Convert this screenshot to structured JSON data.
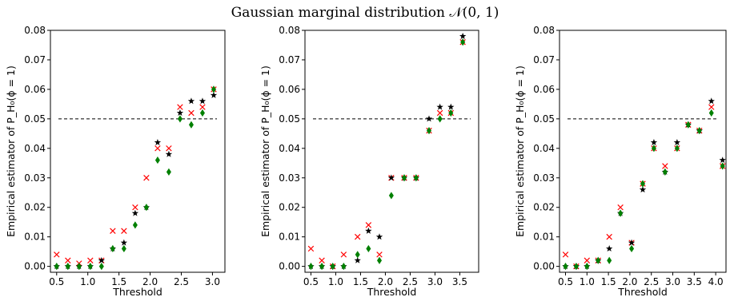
{
  "figure": {
    "title": "Gaussian marginal distribution 𝒩(0, 1)",
    "colors": {
      "cross": "#ff0000",
      "star": "#000000",
      "diamond": "#008000",
      "reference": "#000000"
    }
  },
  "chart_data": [
    {
      "type": "scatter",
      "xlabel": "Threshold",
      "ylabel": "Empirical estimator of P_H₀(ϕ = 1)",
      "xlim": [
        0.4,
        3.2
      ],
      "ylim": [
        -0.002,
        0.08
      ],
      "xticks": [
        "0.5",
        "1.0",
        "1.5",
        "2.0",
        "2.5",
        "3.0"
      ],
      "yticks": [
        "0.00",
        "0.01",
        "0.02",
        "0.03",
        "0.04",
        "0.05",
        "0.06",
        "0.07",
        "0.08"
      ],
      "reference_line": 0.05,
      "x": [
        0.5,
        0.68,
        0.86,
        1.04,
        1.22,
        1.4,
        1.58,
        1.76,
        1.94,
        2.12,
        2.3,
        2.48,
        2.66,
        2.84,
        3.02
      ],
      "series": [
        {
          "marker": "cross",
          "values": [
            0.004,
            0.002,
            0.001,
            0.002,
            0.002,
            0.012,
            0.012,
            0.02,
            0.03,
            0.04,
            0.04,
            0.054,
            0.052,
            0.054,
            0.06
          ]
        },
        {
          "marker": "star",
          "values": [
            0.0,
            0.0,
            0.0,
            0.0,
            0.002,
            0.006,
            0.008,
            0.018,
            0.02,
            0.042,
            0.038,
            0.052,
            0.056,
            0.056,
            0.058
          ]
        },
        {
          "marker": "diamond",
          "values": [
            0.0,
            0.0,
            0.0,
            0.0,
            0.0,
            0.006,
            0.006,
            0.014,
            0.02,
            0.036,
            0.032,
            0.05,
            0.048,
            0.052,
            0.06
          ]
        }
      ]
    },
    {
      "type": "scatter",
      "xlabel": "Threshold",
      "ylabel": "Empirical estimator of P_H₀(ϕ = 1)",
      "xlim": [
        0.38,
        3.88
      ],
      "ylim": [
        -0.002,
        0.08
      ],
      "xticks": [
        "0.5",
        "1.0",
        "1.5",
        "2.0",
        "2.5",
        "3.0",
        "3.5"
      ],
      "yticks": [
        "0.00",
        "0.01",
        "0.02",
        "0.03",
        "0.04",
        "0.05",
        "0.06",
        "0.07",
        "0.08"
      ],
      "reference_line": 0.05,
      "x": [
        0.5,
        0.72,
        0.94,
        1.16,
        1.44,
        1.66,
        1.88,
        2.12,
        2.38,
        2.62,
        2.88,
        3.1,
        3.32,
        3.56
      ],
      "series": [
        {
          "marker": "cross",
          "values": [
            0.006,
            0.002,
            0.0,
            0.004,
            0.01,
            0.014,
            0.004,
            0.03,
            0.03,
            0.03,
            0.046,
            0.052,
            0.052,
            0.076
          ]
        },
        {
          "marker": "star",
          "values": [
            0.0,
            0.0,
            0.0,
            0.0,
            0.002,
            0.012,
            0.01,
            0.03,
            0.03,
            0.03,
            0.05,
            0.054,
            0.054,
            0.078
          ]
        },
        {
          "marker": "diamond",
          "values": [
            0.0,
            0.0,
            0.0,
            0.0,
            0.004,
            0.006,
            0.002,
            0.024,
            0.03,
            0.03,
            0.046,
            0.05,
            0.052,
            0.076
          ]
        }
      ]
    },
    {
      "type": "scatter",
      "xlabel": "Threshold",
      "ylabel": "Empirical estimator of P_H₀(ϕ = 1)",
      "xlim": [
        0.36,
        4.24
      ],
      "ylim": [
        -0.002,
        0.08
      ],
      "xticks": [
        "0.5",
        "1.0",
        "1.5",
        "2.0",
        "2.5",
        "3.0",
        "3.5",
        "4.0"
      ],
      "yticks": [
        "0.00",
        "0.01",
        "0.02",
        "0.03",
        "0.04",
        "0.05",
        "0.06",
        "0.07",
        "0.08"
      ],
      "reference_line": 0.05,
      "x": [
        0.5,
        0.75,
        1.0,
        1.26,
        1.52,
        1.78,
        2.04,
        2.3,
        2.56,
        2.82,
        3.1,
        3.36,
        3.62,
        3.9,
        4.16
      ],
      "series": [
        {
          "marker": "cross",
          "values": [
            0.004,
            0.0,
            0.002,
            0.002,
            0.01,
            0.02,
            0.008,
            0.028,
            0.04,
            0.034,
            0.04,
            0.048,
            0.046,
            0.054,
            0.034
          ]
        },
        {
          "marker": "star",
          "values": [
            0.0,
            0.0,
            0.0,
            0.002,
            0.006,
            0.018,
            0.008,
            0.026,
            0.042,
            0.032,
            0.042,
            0.048,
            0.046,
            0.056,
            0.036
          ]
        },
        {
          "marker": "diamond",
          "values": [
            0.0,
            0.0,
            0.0,
            0.002,
            0.002,
            0.018,
            0.006,
            0.028,
            0.04,
            0.032,
            0.04,
            0.048,
            0.046,
            0.052,
            0.034
          ]
        }
      ]
    }
  ]
}
